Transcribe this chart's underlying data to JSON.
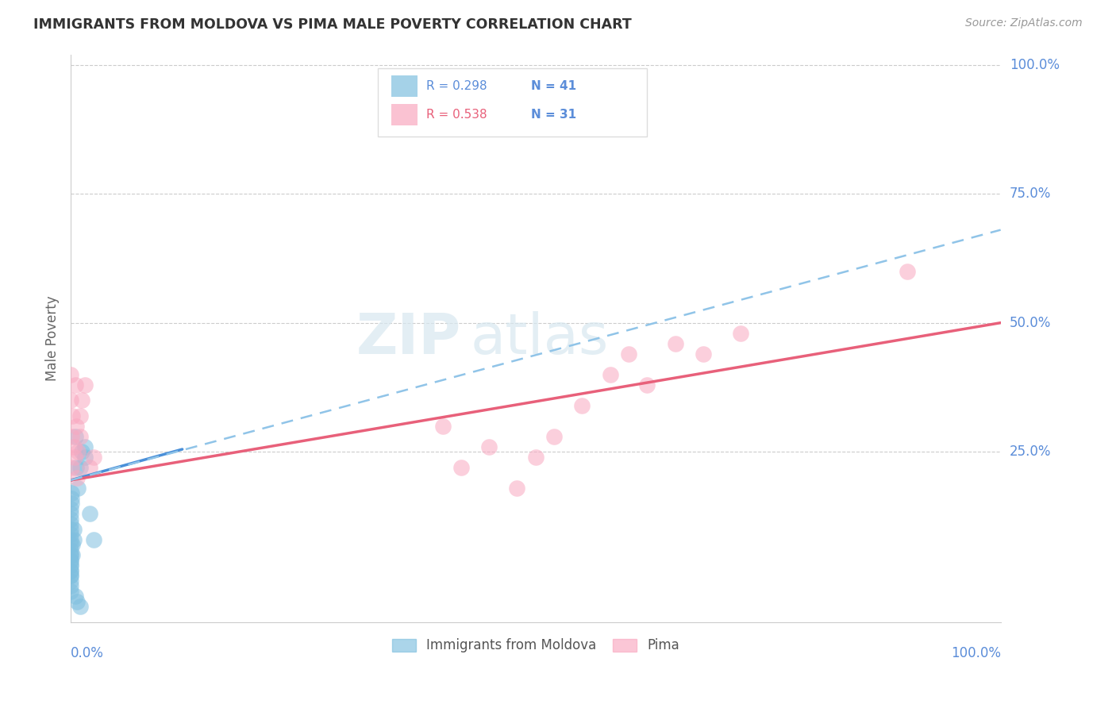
{
  "title": "IMMIGRANTS FROM MOLDOVA VS PIMA MALE POVERTY CORRELATION CHART",
  "source": "Source: ZipAtlas.com",
  "ylabel": "Male Poverty",
  "legend_blue_label": "Immigrants from Moldova",
  "legend_pink_label": "Pima",
  "blue_color": "#7fbfdf",
  "pink_color": "#f9a8c0",
  "blue_line_color": "#4a90d9",
  "pink_line_color": "#e8607a",
  "blue_dashed_color": "#90c4e8",
  "title_color": "#333333",
  "axis_label_color": "#5b8dd9",
  "watermark_zip": "ZIP",
  "watermark_atlas": "atlas",
  "blue_points_x": [
    0.0,
    0.0,
    0.0,
    0.0,
    0.0,
    0.0,
    0.0,
    0.0,
    0.0,
    0.0,
    0.0,
    0.0,
    0.0,
    0.0,
    0.0,
    0.0,
    0.0,
    0.0,
    0.0,
    0.0,
    0.0,
    0.0,
    0.001,
    0.001,
    0.001,
    0.002,
    0.002,
    0.003,
    0.003,
    0.005,
    0.006,
    0.008,
    0.01,
    0.012,
    0.015,
    0.015,
    0.02,
    0.025,
    0.005,
    0.007,
    0.01
  ],
  "blue_points_y": [
    0.0,
    0.01,
    0.01,
    0.02,
    0.02,
    0.03,
    0.03,
    0.04,
    0.04,
    0.05,
    0.05,
    0.06,
    0.07,
    0.08,
    0.09,
    0.1,
    0.11,
    0.12,
    0.13,
    0.14,
    -0.01,
    -0.02,
    0.15,
    0.16,
    0.17,
    0.05,
    0.07,
    0.08,
    0.1,
    0.28,
    0.22,
    0.18,
    0.22,
    0.25,
    0.24,
    0.26,
    0.13,
    0.08,
    -0.03,
    -0.04,
    -0.05
  ],
  "pink_points_x": [
    0.0,
    0.0,
    0.001,
    0.001,
    0.002,
    0.003,
    0.004,
    0.005,
    0.006,
    0.007,
    0.008,
    0.01,
    0.01,
    0.012,
    0.015,
    0.02,
    0.025,
    0.4,
    0.42,
    0.45,
    0.48,
    0.5,
    0.52,
    0.55,
    0.58,
    0.6,
    0.62,
    0.65,
    0.68,
    0.72,
    0.9
  ],
  "pink_points_y": [
    0.4,
    0.35,
    0.22,
    0.28,
    0.32,
    0.26,
    0.24,
    0.38,
    0.3,
    0.2,
    0.25,
    0.32,
    0.28,
    0.35,
    0.38,
    0.22,
    0.24,
    0.3,
    0.22,
    0.26,
    0.18,
    0.24,
    0.28,
    0.34,
    0.4,
    0.44,
    0.38,
    0.46,
    0.44,
    0.48,
    0.6
  ],
  "blue_trend_x0": 0.0,
  "blue_trend_x1": 0.12,
  "blue_trend_y0": 0.195,
  "blue_trend_y1": 0.255,
  "pink_trend_x0": 0.0,
  "pink_trend_x1": 1.0,
  "pink_trend_y0": 0.195,
  "pink_trend_y1": 0.5,
  "dashed_trend_x0": 0.0,
  "dashed_trend_x1": 1.0,
  "dashed_trend_y0": 0.195,
  "dashed_trend_y1": 0.68,
  "xlim": [
    0,
    1.0
  ],
  "ylim": [
    -0.08,
    1.02
  ],
  "ytick_positions": [
    0.25,
    0.5,
    0.75,
    1.0
  ],
  "ytick_labels": [
    "25.0%",
    "50.0%",
    "75.0%",
    "100.0%"
  ],
  "xtick_label_left": "0.0%",
  "xtick_label_right": "100.0%"
}
